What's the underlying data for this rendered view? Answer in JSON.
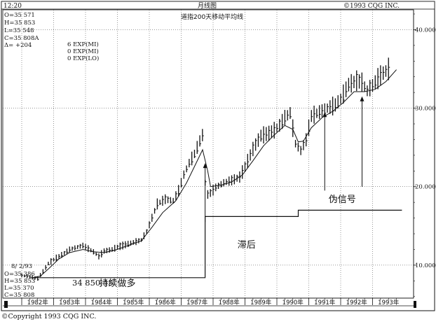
{
  "header": {
    "time": "12:20",
    "period": "月线图",
    "copyright": "©1993 CQG INC.",
    "subtitle": "道指200天移动平均线"
  },
  "stats_top": [
    "O=35 571",
    "H=35 853",
    "L=35 548",
    "C=35 808A",
    "Δ=     +204"
  ],
  "exp_labels": [
    "6 EXP(MI)",
    "0 EXP(MI)",
    "0 EXP(LO)"
  ],
  "stats_bottom": [
    "8/ 2/93",
    "O=35 386",
    "H=35 853",
    "L=35 370",
    "C=35 808"
  ],
  "price_readout": "34 850.45",
  "footer_copyright": "©Copyright 1993 CQG INC.",
  "annotations": {
    "sustained_long": "持续做多",
    "lagging": "滞后",
    "false_signal": "伪信号"
  },
  "chart_data": {
    "type": "bar",
    "title": "道指200天移动平均线",
    "x_labels": [
      "1982年",
      "1983年",
      "1984年",
      "1985年",
      "1986年",
      "1987年",
      "1988年",
      "1989年",
      "1990年",
      "1991年",
      "1992年",
      "1993年"
    ],
    "y_ticks": [
      10000,
      20000,
      30000,
      40000
    ],
    "y_tick_labels": [
      "10.000",
      "20.000",
      "30.000",
      "40.000"
    ],
    "ylim": [
      5800,
      42000
    ],
    "grid": true,
    "series": [
      {
        "kind": "ohlc_monthly",
        "points": [
          [
            1982.0,
            8700
          ],
          [
            1982.25,
            8500
          ],
          [
            1982.5,
            8300
          ],
          [
            1982.67,
            9200
          ],
          [
            1982.83,
            10200
          ],
          [
            1983.0,
            10700
          ],
          [
            1983.25,
            11300
          ],
          [
            1983.5,
            12000
          ],
          [
            1983.75,
            12300
          ],
          [
            1983.92,
            12500
          ],
          [
            1984.25,
            11700
          ],
          [
            1984.42,
            11100
          ],
          [
            1984.58,
            11800
          ],
          [
            1984.83,
            12000
          ],
          [
            1985.0,
            12300
          ],
          [
            1985.25,
            12600
          ],
          [
            1985.5,
            12900
          ],
          [
            1985.75,
            13200
          ],
          [
            1985.92,
            14300
          ],
          [
            1986.08,
            16000
          ],
          [
            1986.25,
            17800
          ],
          [
            1986.5,
            18400
          ],
          [
            1986.75,
            18200
          ],
          [
            1986.92,
            19500
          ],
          [
            1987.08,
            21500
          ],
          [
            1987.25,
            23000
          ],
          [
            1987.42,
            24200
          ],
          [
            1987.58,
            25800
          ],
          [
            1987.67,
            26600
          ],
          [
            1987.75,
            20500
          ],
          [
            1987.83,
            19000
          ],
          [
            1987.92,
            19200
          ],
          [
            1988.08,
            19900
          ],
          [
            1988.33,
            20500
          ],
          [
            1988.58,
            20800
          ],
          [
            1988.83,
            21200
          ],
          [
            1989.0,
            22500
          ],
          [
            1989.25,
            24800
          ],
          [
            1989.5,
            26500
          ],
          [
            1989.75,
            26800
          ],
          [
            1989.92,
            27200
          ],
          [
            1990.08,
            27800
          ],
          [
            1990.25,
            28800
          ],
          [
            1990.42,
            29400
          ],
          [
            1990.58,
            25500
          ],
          [
            1990.75,
            24600
          ],
          [
            1990.92,
            26000
          ],
          [
            1991.08,
            29000
          ],
          [
            1991.33,
            29500
          ],
          [
            1991.58,
            30000
          ],
          [
            1991.83,
            30400
          ],
          [
            1992.0,
            31200
          ],
          [
            1992.25,
            33000
          ],
          [
            1992.5,
            33500
          ],
          [
            1992.67,
            33300
          ],
          [
            1992.83,
            32200
          ],
          [
            1993.0,
            32900
          ],
          [
            1993.25,
            34200
          ],
          [
            1993.5,
            35000
          ],
          [
            1993.58,
            35500
          ]
        ]
      },
      {
        "kind": "moving_average",
        "points": [
          [
            1982.33,
            8400
          ],
          [
            1982.58,
            8600
          ],
          [
            1982.83,
            9500
          ],
          [
            1983.17,
            10800
          ],
          [
            1983.5,
            11600
          ],
          [
            1983.92,
            12000
          ],
          [
            1984.25,
            11700
          ],
          [
            1984.58,
            11600
          ],
          [
            1984.92,
            11900
          ],
          [
            1985.33,
            12500
          ],
          [
            1985.75,
            13100
          ],
          [
            1986.08,
            14800
          ],
          [
            1986.42,
            16700
          ],
          [
            1986.83,
            18200
          ],
          [
            1987.17,
            20500
          ],
          [
            1987.42,
            22600
          ],
          [
            1987.67,
            24700
          ],
          [
            1987.83,
            22000
          ],
          [
            1987.92,
            20000
          ],
          [
            1988.25,
            20200
          ],
          [
            1988.58,
            20600
          ],
          [
            1988.92,
            21500
          ],
          [
            1989.25,
            23300
          ],
          [
            1989.58,
            25200
          ],
          [
            1989.92,
            26600
          ],
          [
            1990.25,
            27800
          ],
          [
            1990.5,
            27300
          ],
          [
            1990.67,
            25700
          ],
          [
            1990.83,
            25800
          ],
          [
            1991.08,
            27500
          ],
          [
            1991.42,
            28800
          ],
          [
            1991.75,
            29600
          ],
          [
            1992.08,
            30700
          ],
          [
            1992.42,
            32100
          ],
          [
            1992.75,
            32100
          ],
          [
            1993.08,
            32400
          ],
          [
            1993.42,
            33400
          ],
          [
            1993.75,
            34900
          ]
        ]
      }
    ],
    "signal_line": [
      [
        1982.25,
        8400
      ],
      [
        1987.75,
        8400
      ],
      [
        1987.75,
        16200
      ],
      [
        1990.67,
        16200
      ],
      [
        1990.67,
        17000
      ],
      [
        1993.92,
        17000
      ]
    ],
    "arrows": [
      [
        1987.75,
        15500,
        23000
      ],
      [
        1991.5,
        19500,
        29500
      ],
      [
        1992.67,
        20000,
        31500
      ]
    ],
    "text_labels": [
      {
        "key": "sustained_long",
        "x": 1985.0,
        "y": 7300
      },
      {
        "key": "lagging",
        "x": 1989.05,
        "y": 12200
      },
      {
        "key": "false_signal",
        "x": 1992.05,
        "y": 18000
      }
    ]
  }
}
